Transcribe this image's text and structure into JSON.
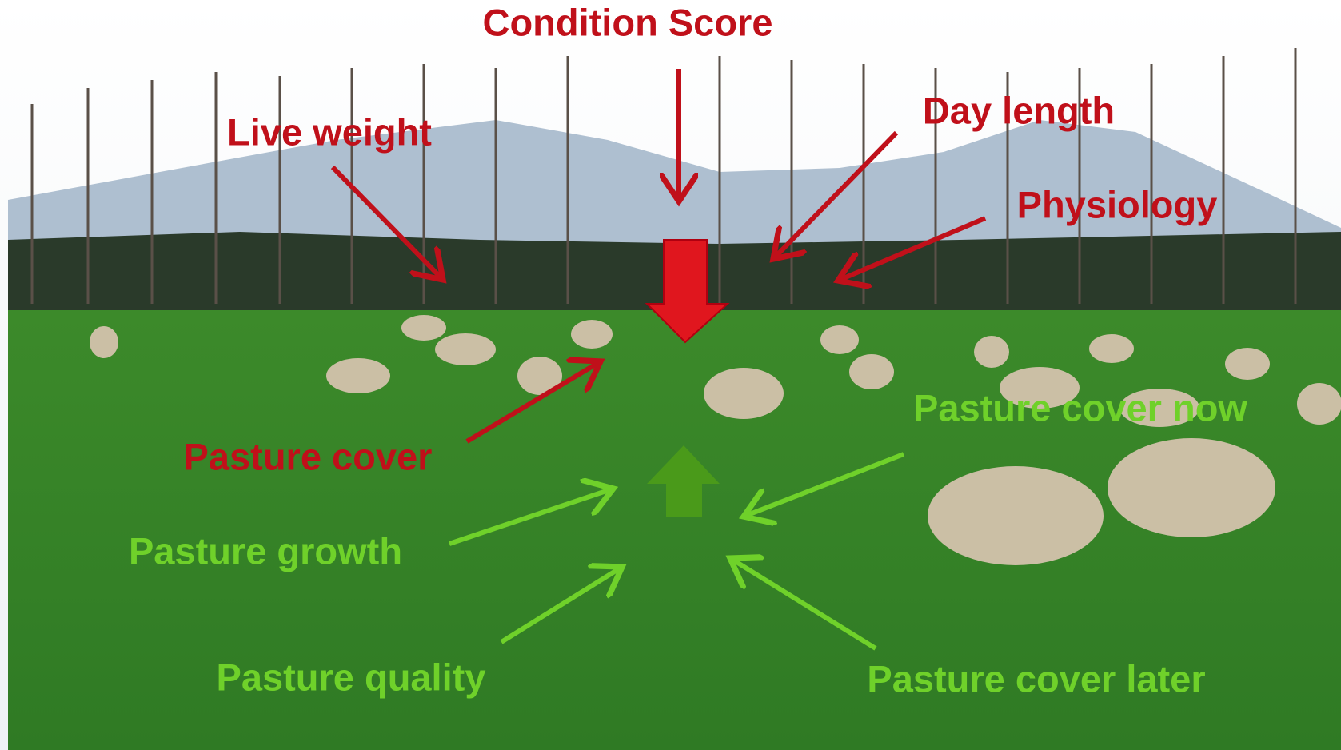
{
  "title": "Condition Score",
  "negative_factors": [
    "Live weight",
    "Day length",
    "Physiology",
    "Pasture cover"
  ],
  "positive_factors": [
    "Pasture cover now",
    "Pasture growth",
    "Pasture quality",
    "Pasture cover later"
  ]
}
